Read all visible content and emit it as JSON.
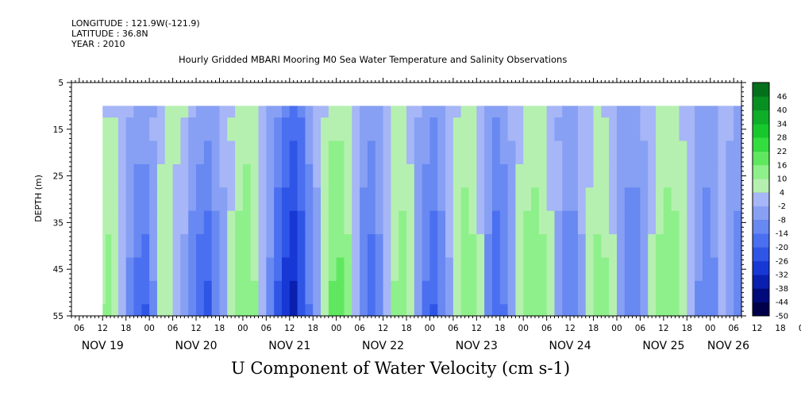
{
  "header": {
    "longitude": "LONGITUDE : 121.9W(-121.9)",
    "latitude": "LATITUDE : 36.8N",
    "year": "YEAR : 2010",
    "plot_title": "Hourly Gridded MBARI Mooring M0 Sea Water Temperature and Salinity Observations"
  },
  "chart_data": {
    "type": "heatmap",
    "title": "U Component of Water Velocity (cm s-1)",
    "ylabel": "DEPTH (m)",
    "y_ticks": [
      "5",
      "15",
      "25",
      "35",
      "45",
      "55"
    ],
    "y_range": [
      5,
      55
    ],
    "y_reversed": true,
    "data_depth_range": [
      10,
      55
    ],
    "x_hour_ticks": [
      "06",
      "12",
      "18",
      "00",
      "06",
      "12",
      "18",
      "00",
      "06",
      "12",
      "18",
      "00",
      "06",
      "12",
      "18",
      "00",
      "06",
      "12",
      "18",
      "00",
      "06",
      "12",
      "18",
      "00",
      "06",
      "12",
      "18",
      "00",
      "06",
      "12",
      "18",
      "00",
      "06"
    ],
    "x_day_labels": [
      "NOV 19",
      "NOV 20",
      "NOV 21",
      "NOV 22",
      "NOV 23",
      "NOV 24",
      "NOV 25",
      "NOV 26"
    ],
    "x_range_hours_from_nov19_00": [
      4,
      176
    ],
    "data_start_hour": 12,
    "colorbar_labels": [
      "46",
      "40",
      "34",
      "28",
      "22",
      "16",
      "10",
      "4",
      "-2",
      "-8",
      "-14",
      "-20",
      "-26",
      "-32",
      "-38",
      "-44",
      "-50"
    ],
    "colorbar_range": [
      -50,
      52
    ],
    "velocity_field": {
      "column_hours": [
        12,
        13.5,
        15,
        17,
        19,
        21,
        23,
        25,
        27,
        29,
        31,
        33,
        35,
        37,
        39,
        41,
        43,
        45,
        47,
        49,
        51,
        53,
        55,
        57,
        59,
        61,
        63,
        65,
        67,
        69,
        71,
        73,
        75,
        77,
        79,
        81,
        83,
        85,
        87,
        89,
        91,
        93,
        95,
        97,
        99,
        101,
        103,
        105,
        107,
        109,
        111,
        113,
        115,
        117,
        119,
        121,
        123,
        125,
        127,
        129,
        131,
        133,
        135,
        137,
        139,
        141,
        143,
        145,
        147,
        149,
        151,
        153,
        155,
        157,
        159,
        161,
        163,
        165,
        167,
        169,
        171,
        173,
        175
      ],
      "depths_m": [
        10,
        15,
        20,
        25,
        30,
        35,
        40,
        45,
        50,
        55
      ],
      "rows_by_depth": [
        [
          2,
          3,
          3,
          1,
          -2,
          -5,
          -6,
          -3,
          2,
          4,
          5,
          4,
          -2,
          -5,
          -6,
          -4,
          -1,
          3,
          6,
          7,
          4,
          1,
          -3,
          -8,
          -14,
          -18,
          -14,
          -8,
          -2,
          3,
          6,
          7,
          4,
          -1,
          -5,
          -6,
          -3,
          1,
          4,
          5,
          2,
          -2,
          -6,
          -7,
          -4,
          -1,
          3,
          5,
          4,
          1,
          -5,
          -8,
          -6,
          -2,
          2,
          5,
          6,
          4,
          1,
          -2,
          -5,
          -4,
          -1,
          2,
          4,
          3,
          0,
          -4,
          -6,
          -5,
          -2,
          1,
          4,
          6,
          5,
          2,
          -1,
          -4,
          -5,
          -3,
          0,
          -2,
          -4
        ],
        [
          4,
          5,
          4,
          2,
          -3,
          -6,
          -7,
          -2,
          3,
          5,
          4,
          2,
          -3,
          -6,
          -7,
          -5,
          -1,
          4,
          7,
          8,
          5,
          1,
          -4,
          -10,
          -16,
          -20,
          -15,
          -7,
          -1,
          4,
          8,
          9,
          5,
          0,
          -6,
          -8,
          -4,
          2,
          5,
          6,
          3,
          -3,
          -7,
          -9,
          -5,
          -1,
          4,
          6,
          5,
          2,
          -6,
          -10,
          -7,
          -2,
          3,
          6,
          7,
          5,
          1,
          -3,
          -6,
          -5,
          -1,
          3,
          5,
          4,
          1,
          -4,
          -7,
          -6,
          -2,
          2,
          5,
          7,
          6,
          3,
          -1,
          -5,
          -6,
          -3,
          1,
          -2,
          -5
        ],
        [
          5,
          6,
          5,
          2,
          -4,
          -7,
          -8,
          -3,
          3,
          6,
          4,
          1,
          -4,
          -8,
          -9,
          -6,
          -2,
          3,
          7,
          9,
          6,
          2,
          -4,
          -12,
          -18,
          -22,
          -16,
          -8,
          -2,
          5,
          10,
          11,
          6,
          0,
          -7,
          -9,
          -5,
          2,
          6,
          7,
          3,
          -3,
          -8,
          -10,
          -6,
          -1,
          5,
          7,
          6,
          2,
          -5,
          -11,
          -8,
          -3,
          3,
          7,
          8,
          6,
          2,
          -2,
          -7,
          -6,
          -1,
          3,
          6,
          5,
          2,
          -4,
          -8,
          -7,
          -3,
          2,
          6,
          8,
          7,
          4,
          0,
          -5,
          -7,
          -4,
          1,
          -3,
          -6
        ],
        [
          6,
          7,
          6,
          2,
          -5,
          -9,
          -10,
          -4,
          4,
          6,
          3,
          0,
          -6,
          -10,
          -11,
          -7,
          -2,
          3,
          8,
          10,
          7,
          2,
          -5,
          -13,
          -20,
          -24,
          -17,
          -9,
          -2,
          6,
          11,
          12,
          7,
          1,
          -8,
          -11,
          -6,
          2,
          7,
          8,
          4,
          -4,
          -9,
          -12,
          -7,
          -1,
          6,
          9,
          7,
          2,
          -6,
          -12,
          -9,
          -3,
          4,
          8,
          9,
          7,
          3,
          -2,
          -7,
          -7,
          -2,
          3,
          7,
          6,
          2,
          -4,
          -8,
          -8,
          -3,
          3,
          7,
          9,
          8,
          5,
          1,
          -5,
          -8,
          -5,
          1,
          -4,
          -7
        ],
        [
          7,
          8,
          6,
          1,
          -6,
          -10,
          -12,
          -5,
          4,
          7,
          3,
          -1,
          -7,
          -12,
          -13,
          -8,
          -3,
          3,
          9,
          11,
          8,
          3,
          -6,
          -15,
          -22,
          -26,
          -19,
          -10,
          -3,
          6,
          12,
          13,
          8,
          1,
          -9,
          -12,
          -7,
          2,
          8,
          9,
          4,
          -4,
          -10,
          -13,
          -8,
          -2,
          6,
          10,
          8,
          3,
          -7,
          -13,
          -10,
          -3,
          4,
          9,
          10,
          8,
          3,
          -2,
          -8,
          -8,
          -2,
          4,
          8,
          7,
          3,
          -5,
          -9,
          -9,
          -4,
          3,
          8,
          10,
          9,
          6,
          1,
          -6,
          -9,
          -6,
          1,
          -4,
          -8
        ],
        [
          8,
          9,
          7,
          1,
          -7,
          -12,
          -14,
          -6,
          4,
          7,
          2,
          -2,
          -9,
          -14,
          -15,
          -9,
          -3,
          4,
          10,
          12,
          8,
          3,
          -7,
          -17,
          -24,
          -28,
          -21,
          -11,
          -3,
          7,
          13,
          14,
          9,
          1,
          -10,
          -14,
          -8,
          2,
          8,
          10,
          5,
          -5,
          -12,
          -15,
          -9,
          -2,
          7,
          11,
          9,
          3,
          -8,
          -15,
          -11,
          -4,
          5,
          10,
          11,
          9,
          4,
          -3,
          -9,
          -9,
          -2,
          4,
          9,
          8,
          3,
          -5,
          -10,
          -10,
          -5,
          3,
          9,
          11,
          10,
          6,
          1,
          -7,
          -10,
          -7,
          2,
          -5,
          -9
        ],
        [
          8,
          10,
          7,
          0,
          -8,
          -14,
          -16,
          -7,
          4,
          7,
          1,
          -3,
          -10,
          -16,
          -17,
          -10,
          -3,
          4,
          11,
          13,
          9,
          3,
          -8,
          -18,
          -26,
          -30,
          -22,
          -12,
          -4,
          7,
          14,
          15,
          10,
          2,
          -11,
          -15,
          -9,
          2,
          9,
          11,
          5,
          -5,
          -13,
          -17,
          -10,
          -2,
          7,
          12,
          10,
          4,
          -9,
          -16,
          -12,
          -4,
          5,
          11,
          12,
          10,
          4,
          -3,
          -10,
          -10,
          -3,
          5,
          10,
          9,
          4,
          -6,
          -11,
          -11,
          -5,
          4,
          10,
          12,
          11,
          7,
          2,
          -7,
          -11,
          -8,
          2,
          -5,
          -10
        ],
        [
          9,
          10,
          7,
          -1,
          -9,
          -15,
          -18,
          -8,
          4,
          6,
          0,
          -4,
          -11,
          -18,
          -19,
          -11,
          -4,
          4,
          11,
          14,
          9,
          3,
          -9,
          -20,
          -28,
          -32,
          -24,
          -13,
          -4,
          8,
          15,
          16,
          10,
          2,
          -12,
          -17,
          -10,
          2,
          9,
          12,
          6,
          -6,
          -14,
          -18,
          -11,
          -3,
          8,
          13,
          11,
          4,
          -10,
          -18,
          -13,
          -5,
          6,
          12,
          13,
          11,
          5,
          -3,
          -11,
          -11,
          -3,
          5,
          11,
          10,
          4,
          -6,
          -12,
          -12,
          -6,
          4,
          11,
          13,
          12,
          8,
          2,
          -8,
          -12,
          -9,
          2,
          -6,
          -11
        ],
        [
          9,
          11,
          7,
          -2,
          -10,
          -17,
          -20,
          -9,
          4,
          6,
          -1,
          -5,
          -12,
          -19,
          -21,
          -12,
          -4,
          4,
          12,
          15,
          10,
          3,
          -10,
          -21,
          -30,
          -34,
          -25,
          -14,
          -5,
          8,
          16,
          17,
          11,
          2,
          -13,
          -18,
          -11,
          2,
          10,
          12,
          6,
          -6,
          -15,
          -20,
          -12,
          -3,
          8,
          14,
          11,
          4,
          -11,
          -19,
          -14,
          -5,
          6,
          13,
          14,
          11,
          5,
          -4,
          -12,
          -12,
          -3,
          6,
          11,
          10,
          5,
          -7,
          -13,
          -13,
          -6,
          4,
          11,
          14,
          13,
          8,
          2,
          -9,
          -13,
          -9,
          2,
          -6,
          -12
        ],
        [
          10,
          11,
          7,
          -2,
          -11,
          -18,
          -21,
          -10,
          4,
          5,
          -2,
          -6,
          -13,
          -20,
          -22,
          -13,
          -5,
          4,
          12,
          15,
          10,
          3,
          -11,
          -22,
          -31,
          -35,
          -26,
          -15,
          -5,
          8,
          16,
          18,
          11,
          2,
          -14,
          -19,
          -12,
          2,
          10,
          13,
          7,
          -7,
          -16,
          -21,
          -13,
          -3,
          9,
          14,
          12,
          5,
          -11,
          -20,
          -15,
          -6,
          7,
          14,
          15,
          12,
          5,
          -4,
          -13,
          -13,
          -4,
          6,
          12,
          11,
          5,
          -7,
          -14,
          -14,
          -7,
          5,
          12,
          15,
          14,
          9,
          2,
          -9,
          -14,
          -10,
          2,
          -7,
          -13
        ]
      ]
    }
  }
}
